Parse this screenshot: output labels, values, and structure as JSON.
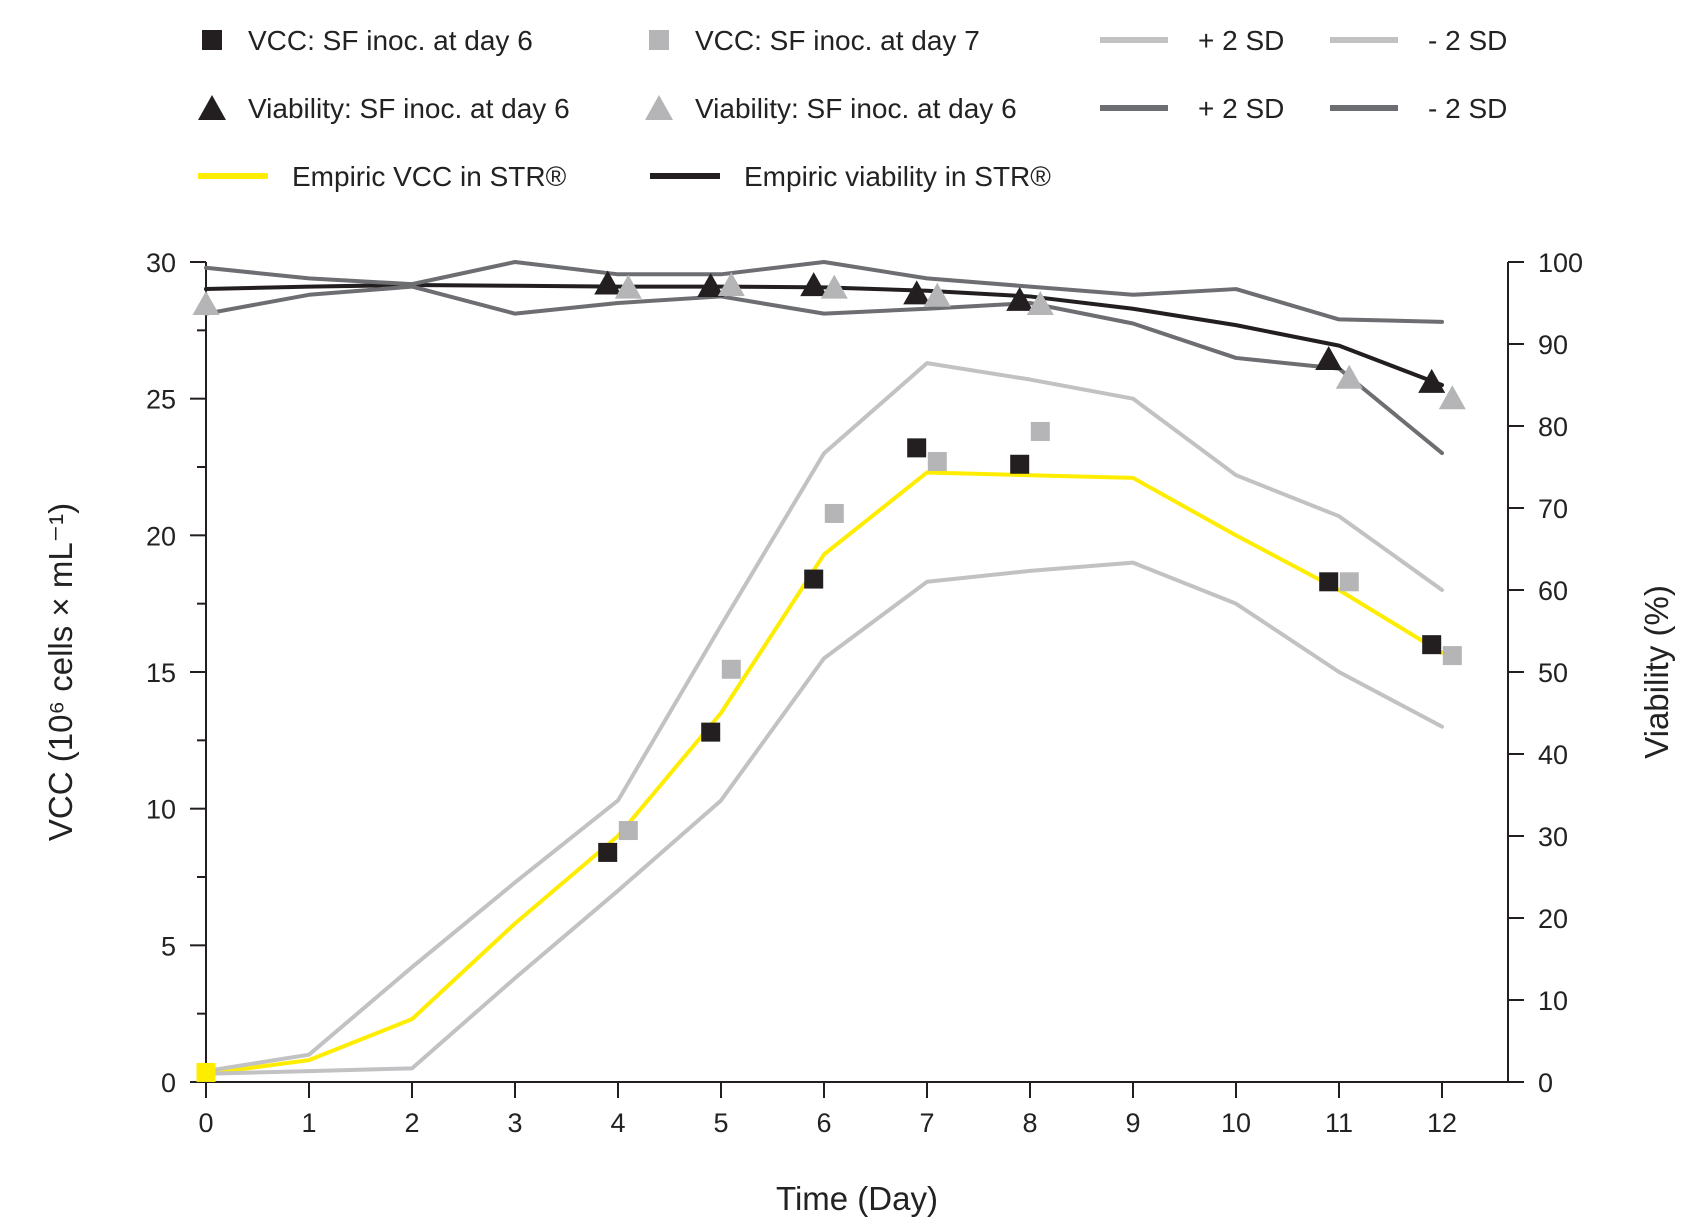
{
  "chart_data": {
    "type": "line",
    "x": [
      0,
      1,
      2,
      3,
      4,
      5,
      6,
      7,
      8,
      9,
      10,
      11,
      12
    ],
    "xlabel": "Time (Day)",
    "xlim": [
      0,
      12.5
    ],
    "ylabel_left": "VCC (10⁶ cells × mL⁻¹)",
    "ylim_left": [
      0,
      30
    ],
    "yticks_left": [
      "0",
      "5",
      "10",
      "15",
      "20",
      "25",
      "30"
    ],
    "ylabel_right": "Viability (%)",
    "ylim_right": [
      0,
      100
    ],
    "yticks_right": [
      "0",
      "10",
      "20",
      "30",
      "40",
      "50",
      "60",
      "70",
      "80",
      "90",
      "100"
    ],
    "xticks": [
      "0",
      "1",
      "2",
      "3",
      "4",
      "5",
      "6",
      "7",
      "8",
      "9",
      "10",
      "11",
      "12"
    ],
    "grid": false,
    "legend_position": "top",
    "legend": [
      {
        "label": "VCC: SF inoc. at day 6",
        "kind": "marker-square",
        "color": "#231f20"
      },
      {
        "label": "VCC: SF inoc. at day 7",
        "kind": "marker-square",
        "color": "#b5b5b7"
      },
      {
        "label": "+ 2 SD",
        "kind": "line",
        "color": "#c2c2c4"
      },
      {
        "label": "- 2 SD",
        "kind": "line",
        "color": "#c2c2c4"
      },
      {
        "label": "Viability: SF inoc. at day 6",
        "kind": "marker-triangle",
        "color": "#231f20"
      },
      {
        "label": "Viability: SF inoc. at day 6",
        "kind": "marker-triangle",
        "color": "#b5b5b7"
      },
      {
        "label": "+ 2 SD",
        "kind": "line",
        "color": "#6d6e71"
      },
      {
        "label": "- 2 SD",
        "kind": "line",
        "color": "#6d6e71"
      },
      {
        "label": "Empiric VCC in STR®",
        "kind": "line",
        "color": "#ffed00"
      },
      {
        "label": "Empiric viability in STR®",
        "kind": "line",
        "color": "#231f20"
      }
    ],
    "series": [
      {
        "name": "Empiric VCC in STR®",
        "axis": "left",
        "kind": "line",
        "color": "#ffed00",
        "x": [
          0,
          1,
          2,
          3,
          4,
          5,
          6,
          7,
          8,
          9,
          10,
          11,
          12
        ],
        "y": [
          0.3,
          0.8,
          2.3,
          5.8,
          9.0,
          13.5,
          19.3,
          22.3,
          22.2,
          22.1,
          20.0,
          18.0,
          15.7
        ]
      },
      {
        "name": "+ 2 SD",
        "axis": "left",
        "kind": "line",
        "color": "#c2c2c4",
        "x": [
          0,
          1,
          2,
          3,
          4,
          5,
          6,
          7,
          8,
          9,
          10,
          11,
          12
        ],
        "y": [
          0.4,
          1.0,
          4.2,
          7.3,
          10.3,
          16.7,
          23.0,
          26.3,
          25.7,
          25.0,
          22.2,
          20.7,
          18.0
        ]
      },
      {
        "name": "- 2 SD",
        "axis": "left",
        "kind": "line",
        "color": "#c2c2c4",
        "x": [
          0,
          1,
          2,
          3,
          4,
          5,
          6,
          7,
          8,
          9,
          10,
          11,
          12
        ],
        "y": [
          0.3,
          0.4,
          0.5,
          3.8,
          7.0,
          10.3,
          15.5,
          18.3,
          18.7,
          19.0,
          17.5,
          15.0,
          13.0
        ]
      },
      {
        "name": "Empiric viability in STR®",
        "axis": "right",
        "kind": "line",
        "color": "#231f20",
        "x": [
          0,
          1,
          2,
          3,
          4,
          5,
          6,
          7,
          8,
          9,
          10,
          11,
          12
        ],
        "y": [
          96.7,
          97.0,
          97.2,
          97.1,
          97.0,
          97.0,
          96.9,
          96.5,
          95.8,
          94.3,
          92.3,
          89.8,
          85.0
        ]
      },
      {
        "name": "+ 2 SD",
        "axis": "right",
        "kind": "line",
        "color": "#6d6e71",
        "x": [
          0,
          1,
          2,
          3,
          4,
          5,
          6,
          7,
          8,
          9,
          10,
          11,
          12
        ],
        "y": [
          99.3,
          98.0,
          97.3,
          100.0,
          98.5,
          98.5,
          100.0,
          98.0,
          97.0,
          96.0,
          96.7,
          93.0,
          92.7
        ]
      },
      {
        "name": "- 2 SD",
        "axis": "right",
        "kind": "line",
        "color": "#6d6e71",
        "x": [
          0,
          1,
          2,
          3,
          4,
          5,
          6,
          7,
          8,
          9,
          10,
          11,
          12
        ],
        "y": [
          93.7,
          96.0,
          97.0,
          93.7,
          95.0,
          95.8,
          93.7,
          94.3,
          95.0,
          92.5,
          88.3,
          87.0,
          76.7
        ]
      },
      {
        "name": "VCC: SF inoc. at day 6",
        "axis": "left",
        "kind": "square",
        "color": "#231f20",
        "x": [
          3.9,
          4.9,
          5.9,
          6.9,
          7.9,
          10.9,
          11.9
        ],
        "y": [
          8.4,
          12.8,
          18.4,
          23.2,
          22.6,
          18.3,
          16.0
        ]
      },
      {
        "name": "VCC: SF inoc. at day 7",
        "axis": "left",
        "kind": "square",
        "color": "#b5b5b7",
        "x": [
          4.1,
          5.1,
          6.1,
          7.1,
          8.1,
          11.1,
          12.1
        ],
        "y": [
          9.2,
          15.1,
          20.8,
          22.7,
          23.8,
          18.3,
          15.6
        ]
      },
      {
        "name": "Viability: SF inoc. at day 6",
        "axis": "right",
        "kind": "triangle",
        "color": "#231f20",
        "x": [
          3.9,
          4.9,
          5.9,
          6.9,
          7.9,
          10.9,
          11.9
        ],
        "y": [
          97.5,
          97.2,
          97.3,
          96.3,
          95.5,
          88.3,
          85.5
        ]
      },
      {
        "name": "Viability: SF inoc. at day 6",
        "axis": "right",
        "kind": "triangle",
        "color": "#b5b5b7",
        "x": [
          0,
          4.1,
          5.1,
          6.1,
          7.1,
          8.1,
          11.1,
          12.1
        ],
        "y": [
          95.0,
          97.0,
          97.3,
          97.0,
          96.0,
          95.0,
          86.0,
          83.5
        ]
      },
      {
        "name": "",
        "axis": "left",
        "kind": "square",
        "color": "#ffed00",
        "x": [
          0
        ],
        "y": [
          0.35
        ]
      }
    ]
  }
}
